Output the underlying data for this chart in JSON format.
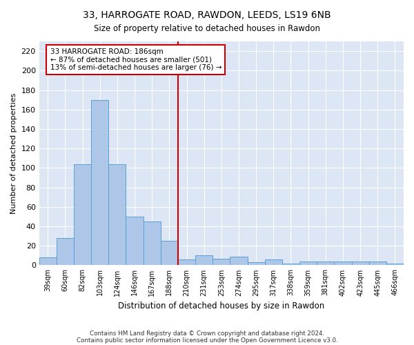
{
  "title_line1": "33, HARROGATE ROAD, RAWDON, LEEDS, LS19 6NB",
  "title_line2": "Size of property relative to detached houses in Rawdon",
  "xlabel": "Distribution of detached houses by size in Rawdon",
  "ylabel": "Number of detached properties",
  "categories": [
    "39sqm",
    "60sqm",
    "82sqm",
    "103sqm",
    "124sqm",
    "146sqm",
    "167sqm",
    "188sqm",
    "210sqm",
    "231sqm",
    "253sqm",
    "274sqm",
    "295sqm",
    "317sqm",
    "338sqm",
    "359sqm",
    "381sqm",
    "402sqm",
    "423sqm",
    "445sqm",
    "466sqm"
  ],
  "values": [
    8,
    28,
    104,
    170,
    104,
    50,
    45,
    25,
    6,
    10,
    7,
    9,
    3,
    6,
    2,
    4,
    4,
    4,
    4,
    4,
    2
  ],
  "bar_color": "#aec6e8",
  "bar_edge_color": "#5a9fd4",
  "annotation_title": "33 HARROGATE ROAD: 186sqm",
  "annotation_line1": "← 87% of detached houses are smaller (501)",
  "annotation_line2": "13% of semi-detached houses are larger (76) →",
  "vline_index": 7.5,
  "vline_color": "#cc0000",
  "ylim": [
    0,
    230
  ],
  "yticks": [
    0,
    20,
    40,
    60,
    80,
    100,
    120,
    140,
    160,
    180,
    200,
    220
  ],
  "background_color": "#dce6f5",
  "footer1": "Contains HM Land Registry data © Crown copyright and database right 2024.",
  "footer2": "Contains public sector information licensed under the Open Government Licence v3.0."
}
